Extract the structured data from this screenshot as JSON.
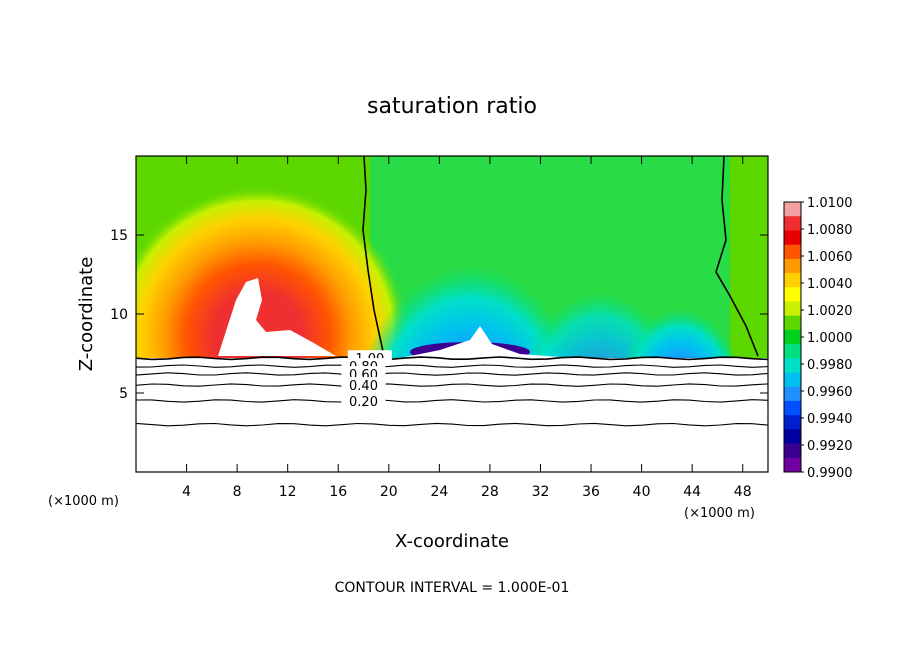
{
  "chart_data": {
    "type": "heatmap",
    "title": "saturation ratio",
    "xlabel": "X-coordinate",
    "ylabel": "Z-coordinate",
    "x_unit": "(×1000 m)",
    "xlim": [
      0,
      50
    ],
    "ylim": [
      0,
      20
    ],
    "x_ticks": [
      4,
      8,
      12,
      16,
      20,
      24,
      28,
      32,
      36,
      40,
      44,
      48
    ],
    "y_ticks": [
      5,
      10,
      15
    ],
    "footer": "CONTOUR INTERVAL = 1.000E-01",
    "colorbar": {
      "levels": [
        "1.0100",
        "1.0080",
        "1.0060",
        "1.0040",
        "1.0020",
        "1.0000",
        "0.9980",
        "0.9960",
        "0.9940",
        "0.9920",
        "0.9900"
      ],
      "colors": [
        "#f4a0a0",
        "#f03030",
        "#e80000",
        "#ff5500",
        "#ff9a00",
        "#ffd000",
        "#ffff00",
        "#c8f000",
        "#5cd800",
        "#00d020",
        "#00e080",
        "#00e0c8",
        "#00c0f0",
        "#2090ff",
        "#0050ff",
        "#0020d0",
        "#0000a0",
        "#3a0090",
        "#7000a0"
      ]
    },
    "contours": [
      {
        "label": "1.00",
        "z": 7.2,
        "x_label": 18.5
      },
      {
        "label": "0.80",
        "z": 6.7,
        "x_label": 18.0
      },
      {
        "label": "0.60",
        "z": 6.2,
        "x_label": 18.0
      },
      {
        "label": "0.40",
        "z": 5.5,
        "x_label": 18.0
      },
      {
        "label": "0.20",
        "z": 4.5,
        "x_label": 18.0
      },
      {
        "label": "",
        "z": 3.0,
        "x_label": null
      }
    ]
  }
}
